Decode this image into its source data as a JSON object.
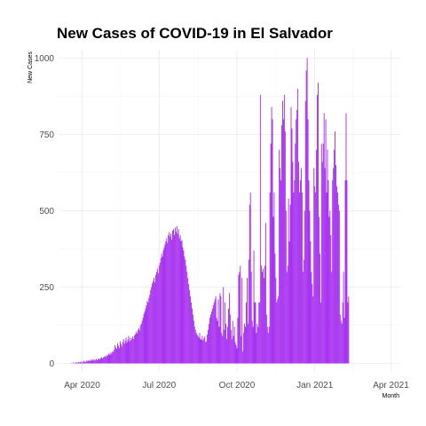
{
  "chart_data": {
    "type": "bar",
    "title": "New Cases of COVID-19 in El Salvador",
    "xlabel": "Month",
    "ylabel": "New Cases",
    "x_start": "2020-03-18",
    "x_end": "2021-03-17",
    "xlim": [
      "2020-03-01",
      "2021-04-08"
    ],
    "ylim": [
      0,
      1000
    ],
    "y_ticks": [
      0,
      250,
      500,
      750,
      1000
    ],
    "y_tick_labels": [
      "0",
      "250",
      "500",
      "750",
      "1000"
    ],
    "x_ticks": [
      {
        "date": "2020-04-01",
        "label": "Apr 2020"
      },
      {
        "date": "2020-07-01",
        "label": "Jul 2020"
      },
      {
        "date": "2020-10-01",
        "label": "Oct 2020"
      },
      {
        "date": "2021-01-01",
        "label": "Jan 2021"
      },
      {
        "date": "2021-04-01",
        "label": "Apr 2021"
      }
    ],
    "grid": true,
    "bar_color": "#A020F0",
    "values": [
      0,
      0,
      2,
      0,
      3,
      0,
      1,
      4,
      3,
      2,
      5,
      3,
      4,
      6,
      2,
      5,
      8,
      6,
      4,
      9,
      7,
      10,
      8,
      12,
      7,
      11,
      14,
      9,
      13,
      10,
      12,
      15,
      11,
      14,
      16,
      13,
      18,
      20,
      16,
      19,
      22,
      24,
      21,
      27,
      25,
      30,
      33,
      28,
      36,
      32,
      40,
      38,
      45,
      60,
      52,
      48,
      66,
      58,
      50,
      72,
      63,
      55,
      70,
      80,
      64,
      74,
      85,
      68,
      78,
      90,
      72,
      84,
      76,
      82,
      88,
      80,
      92,
      96,
      104,
      98,
      110,
      116,
      108,
      125,
      130,
      140,
      150,
      162,
      170,
      180,
      190,
      205,
      200,
      215,
      225,
      240,
      250,
      262,
      270,
      280,
      265,
      290,
      300,
      310,
      295,
      320,
      330,
      345,
      360,
      350,
      370,
      380,
      390,
      400,
      410,
      395,
      420,
      430,
      415,
      425,
      405,
      435,
      440,
      420,
      445,
      430,
      450,
      425,
      440,
      410,
      420,
      400,
      405,
      380,
      370,
      350,
      340,
      320,
      300,
      280,
      260,
      240,
      220,
      200,
      180,
      160,
      140,
      120,
      110,
      100,
      95,
      90,
      85,
      100,
      80,
      78,
      90,
      75,
      82,
      88,
      70,
      72,
      95,
      110,
      130,
      150,
      160,
      170,
      180,
      190,
      200,
      210,
      220,
      150,
      140,
      210,
      120,
      230,
      220,
      100,
      90,
      250,
      110,
      200,
      130,
      80,
      120,
      180,
      230,
      160,
      110,
      80,
      140,
      90,
      120,
      70,
      60,
      50,
      150,
      290,
      300,
      320,
      90,
      280,
      40,
      100,
      130,
      120,
      200,
      280,
      130,
      340,
      520,
      560,
      300,
      140,
      120,
      370,
      200,
      200,
      100,
      130,
      120,
      200,
      200,
      880,
      320,
      300,
      310,
      280,
      320,
      460,
      160,
      120,
      100,
      120,
      560,
      720,
      840,
      800,
      480,
      560,
      360,
      280,
      200,
      210,
      220,
      700,
      640,
      600,
      780,
      860,
      800,
      880,
      760,
      500,
      300,
      320,
      540,
      400,
      520,
      840,
      770,
      660,
      560,
      600,
      720,
      800,
      830,
      900,
      660,
      560,
      600,
      640,
      560,
      300,
      340,
      500,
      860,
      960,
      1000,
      800,
      600,
      500,
      400,
      300,
      260,
      220,
      640,
      580,
      560,
      700,
      880,
      920,
      480,
      360,
      200,
      720,
      660,
      720,
      820,
      640,
      800,
      560,
      700,
      600,
      480,
      500,
      420,
      300,
      600,
      640,
      700,
      760,
      650,
      580,
      560,
      520,
      500,
      160,
      140,
      130,
      200,
      300,
      150,
      600,
      820,
      600,
      200,
      220
    ]
  }
}
